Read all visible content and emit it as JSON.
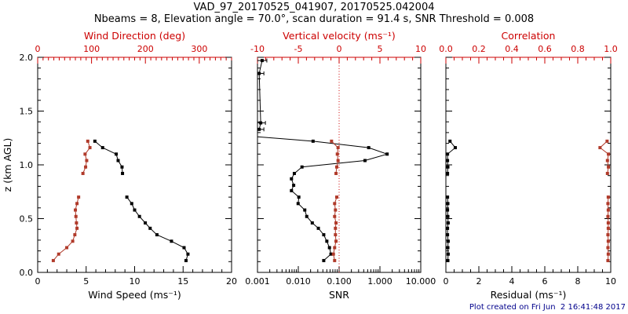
{
  "header": {
    "title": "VAD_97_20170525_041907, 20170525.042004",
    "subtitle": "Nbeams = 8, Elevation angle = 70.0°, scan duration = 91.4 s, SNR Threshold = 0.008"
  },
  "footer": {
    "created_text": "Plot created on Fri Jun  2 16:41:48 2017"
  },
  "colors": {
    "foreground": "#000000",
    "axis_red": "#cc0000",
    "data_red": "#b03a2a",
    "timestamp_blue": "#00008b",
    "background": "#ffffff"
  },
  "chart_data": {
    "type": "line",
    "ylabel": "z (km AGL)",
    "ylim": [
      0.0,
      2.0
    ],
    "yticks": [
      0.0,
      0.5,
      1.0,
      1.5,
      2.0
    ],
    "ytick_labels": [
      "0.0",
      "0.5",
      "1.0",
      "1.5",
      "2.0"
    ],
    "y_minor_step": 0.1,
    "panels": [
      {
        "id": "wind",
        "bottom_axis": {
          "label": "Wind Speed (ms⁻¹)",
          "lim": [
            0,
            20
          ],
          "ticks": [
            0,
            5,
            10,
            15,
            20
          ],
          "tick_labels": [
            "0",
            "5",
            "10",
            "15",
            "20"
          ],
          "minor_step": 1,
          "color": "black"
        },
        "top_axis": {
          "label": "Wind Direction (deg)",
          "lim": [
            0,
            360
          ],
          "ticks": [
            0,
            100,
            200,
            300
          ],
          "tick_labels": [
            "0",
            "100",
            "200",
            "300"
          ],
          "minor_step": 10,
          "color": "red"
        },
        "series": [
          {
            "name": "wind-speed",
            "axis": "bottom",
            "color": "black",
            "segments": [
              {
                "z": [
                  1.22,
                  1.16,
                  1.1,
                  1.04,
                  0.98,
                  0.92
                ],
                "x": [
                  5.9,
                  6.7,
                  8.1,
                  8.3,
                  8.7,
                  8.75
                ]
              },
              {
                "z": [
                  0.7,
                  0.64,
                  0.58,
                  0.52,
                  0.46,
                  0.41,
                  0.35,
                  0.29,
                  0.23,
                  0.17,
                  0.11
                ],
                "x": [
                  9.2,
                  9.7,
                  10.0,
                  10.5,
                  11.1,
                  11.6,
                  12.3,
                  13.8,
                  15.1,
                  15.5,
                  15.3
                ]
              }
            ]
          },
          {
            "name": "wind-direction",
            "axis": "top",
            "color": "darkred",
            "segments": [
              {
                "z": [
                  1.22,
                  1.16,
                  1.1,
                  1.04,
                  0.98,
                  0.92
                ],
                "x": [
                  93,
                  97,
                  88,
                  91,
                  89,
                  84
                ]
              },
              {
                "z": [
                  0.7,
                  0.64,
                  0.58,
                  0.52,
                  0.46,
                  0.41,
                  0.35,
                  0.29,
                  0.23,
                  0.17,
                  0.11
                ],
                "x": [
                  76,
                  73,
                  70,
                  71,
                  72,
                  73,
                  69,
                  65,
                  54,
                  39,
                  29
                ]
              }
            ]
          }
        ]
      },
      {
        "id": "snr",
        "bottom_axis": {
          "label": "SNR",
          "scale": "log",
          "lim": [
            0.001,
            10
          ],
          "ticks": [
            0.001,
            0.01,
            0.1,
            1,
            10
          ],
          "tick_labels": [
            "0.001",
            "0.010",
            "0.100",
            "1.000",
            "10.000"
          ],
          "color": "black"
        },
        "top_axis": {
          "label": "Vertical velocity (ms⁻¹)",
          "lim": [
            -10,
            10
          ],
          "ticks": [
            -10,
            -5,
            0,
            5,
            10
          ],
          "tick_labels": [
            "-10",
            "-5",
            "0",
            "5",
            "10"
          ],
          "minor_step": 1,
          "color": "red"
        },
        "refline": {
          "axis": "top",
          "value": 0,
          "style": "dotted",
          "color": "red"
        },
        "series": [
          {
            "name": "snr",
            "axis": "bottom",
            "color": "black",
            "errorbar_indices": [
              0,
              1,
              2,
              3
            ],
            "segments": [
              {
                "z": [
                  1.97,
                  1.85,
                  1.39,
                  1.33,
                  1.27,
                  1.22,
                  1.16,
                  1.1,
                  1.04,
                  0.98,
                  0.92,
                  0.87,
                  0.81,
                  0.76,
                  0.7,
                  0.64,
                  0.58,
                  0.52,
                  0.46,
                  0.41,
                  0.35,
                  0.29,
                  0.23,
                  0.17,
                  0.11
                ],
                "x": [
                  0.0013,
                  0.0011,
                  0.0012,
                  0.0011,
                  0.0005,
                  0.023,
                  0.53,
                  1.5,
                  0.43,
                  0.0123,
                  0.008,
                  0.0068,
                  0.0077,
                  0.0068,
                  0.0103,
                  0.0099,
                  0.0144,
                  0.0161,
                  0.022,
                  0.031,
                  0.042,
                  0.05,
                  0.058,
                  0.063,
                  0.042
                ]
              }
            ]
          },
          {
            "name": "vertical-velocity",
            "axis": "top",
            "color": "darkred",
            "segments": [
              {
                "z": [
                  1.22,
                  1.16,
                  1.1,
                  1.04,
                  0.98,
                  0.92
                ],
                "x": [
                  -0.93,
                  -0.13,
                  -0.22,
                  -0.13,
                  -0.29,
                  -0.38
                ]
              },
              {
                "z": [
                  0.7,
                  0.64,
                  0.58,
                  0.52,
                  0.46,
                  0.41,
                  0.35,
                  0.29,
                  0.23,
                  0.17,
                  0.11
                ],
                "x": [
                  -0.29,
                  -0.55,
                  -0.45,
                  -0.55,
                  -0.38,
                  -0.45,
                  -0.45,
                  -0.38,
                  -0.55,
                  -0.7,
                  -0.55
                ]
              }
            ]
          }
        ]
      },
      {
        "id": "residual",
        "bottom_axis": {
          "label": "Residual (ms⁻¹)",
          "lim": [
            0,
            10
          ],
          "ticks": [
            0,
            2,
            4,
            6,
            8,
            10
          ],
          "tick_labels": [
            "0",
            "2",
            "4",
            "6",
            "8",
            "10"
          ],
          "minor_step": 0.5,
          "color": "black"
        },
        "top_axis": {
          "label": "Correlation",
          "lim": [
            0.0,
            1.0
          ],
          "ticks": [
            0.0,
            0.2,
            0.4,
            0.6,
            0.8,
            1.0
          ],
          "tick_labels": [
            "0.0",
            "0.2",
            "0.4",
            "0.6",
            "0.8",
            "1.0"
          ],
          "minor_step": 0.05,
          "color": "red"
        },
        "series": [
          {
            "name": "residual",
            "axis": "bottom",
            "color": "black",
            "segments": [
              {
                "z": [
                  1.22,
                  1.16,
                  1.1,
                  1.04,
                  0.98,
                  0.92
                ],
                "x": [
                  0.25,
                  0.57,
                  0.1,
                  0.1,
                  0.12,
                  0.1
                ]
              },
              {
                "z": [
                  0.7,
                  0.64,
                  0.58,
                  0.52,
                  0.46,
                  0.41,
                  0.35,
                  0.29,
                  0.23,
                  0.17,
                  0.11
                ],
                "x": [
                  0.1,
                  0.12,
                  0.1,
                  0.12,
                  0.14,
                  0.1,
                  0.1,
                  0.14,
                  0.12,
                  0.14,
                  0.12
                ]
              }
            ]
          },
          {
            "name": "correlation",
            "axis": "top",
            "color": "darkred",
            "segments": [
              {
                "z": [
                  1.22,
                  1.16,
                  1.1,
                  1.04,
                  0.98,
                  0.92
                ],
                "x": [
                  0.978,
                  0.935,
                  0.986,
                  0.98,
                  0.986,
                  0.98
                ]
              },
              {
                "z": [
                  0.7,
                  0.64,
                  0.58,
                  0.52,
                  0.46,
                  0.41,
                  0.35,
                  0.29,
                  0.23,
                  0.17,
                  0.11
                ],
                "x": [
                  0.985,
                  0.983,
                  0.985,
                  0.983,
                  0.985,
                  0.985,
                  0.983,
                  0.985,
                  0.983,
                  0.985,
                  0.983
                ]
              }
            ]
          }
        ]
      }
    ]
  }
}
